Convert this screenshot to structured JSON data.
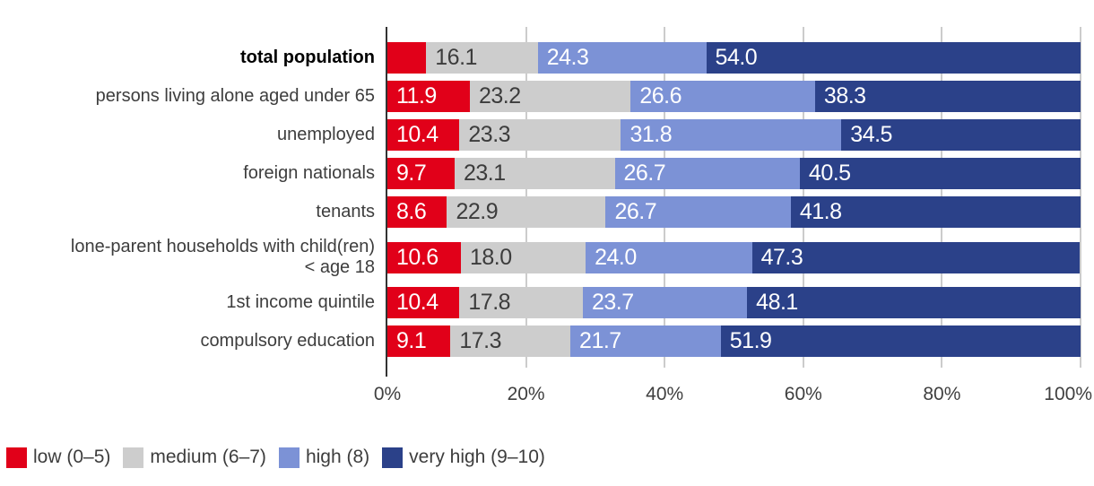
{
  "chart_data": {
    "type": "bar",
    "orientation": "horizontal",
    "stacked": true,
    "title": "",
    "unit": "%",
    "x_ticks": [
      "0%",
      "20%",
      "40%",
      "60%",
      "80%",
      "100%"
    ],
    "x_range": [
      0,
      100
    ],
    "gridlines_at": [
      20,
      40,
      60,
      80,
      100
    ],
    "grid": "vertical",
    "legend_position": "bottom-left",
    "series": [
      {
        "name": "low (0–5)",
        "key": "low",
        "color": "#e10019",
        "label_color": "#ffffff"
      },
      {
        "name": "medium (6–7)",
        "key": "medium",
        "color": "#cdcdcd",
        "label_color": "#3c3c3c"
      },
      {
        "name": "high (8)",
        "key": "high",
        "color": "#7c92d6",
        "label_color": "#ffffff"
      },
      {
        "name": "very high (9–10)",
        "key": "very-high",
        "color": "#2b4189",
        "label_color": "#ffffff"
      }
    ],
    "rows": [
      {
        "category": "total population",
        "bold": true,
        "tall": false,
        "values": [
          5.6,
          16.1,
          24.3,
          54.0
        ],
        "labels": [
          "",
          "16.1",
          "24.3",
          "54.0"
        ]
      },
      {
        "category": "persons living alone aged under 65",
        "bold": false,
        "tall": false,
        "values": [
          11.9,
          23.2,
          26.6,
          38.3
        ],
        "labels": [
          "11.9",
          "23.2",
          "26.6",
          "38.3"
        ]
      },
      {
        "category": "unemployed",
        "bold": false,
        "tall": false,
        "values": [
          10.4,
          23.3,
          31.8,
          34.5
        ],
        "labels": [
          "10.4",
          "23.3",
          "31.8",
          "34.5"
        ]
      },
      {
        "category": "foreign nationals",
        "bold": false,
        "tall": false,
        "values": [
          9.7,
          23.1,
          26.7,
          40.5
        ],
        "labels": [
          "9.7",
          "23.1",
          "26.7",
          "40.5"
        ]
      },
      {
        "category": "tenants",
        "bold": false,
        "tall": false,
        "values": [
          8.6,
          22.9,
          26.7,
          41.8
        ],
        "labels": [
          "8.6",
          "22.9",
          "26.7",
          "41.8"
        ]
      },
      {
        "category": "lone-parent households with child(ren)\n< age 18",
        "bold": false,
        "tall": true,
        "values": [
          10.6,
          18.0,
          24.0,
          47.3
        ],
        "labels": [
          "10.6",
          "18.0",
          "24.0",
          "47.3"
        ]
      },
      {
        "category": "1st income quintile",
        "bold": false,
        "tall": false,
        "values": [
          10.4,
          17.8,
          23.7,
          48.1
        ],
        "labels": [
          "10.4",
          "17.8",
          "23.7",
          "48.1"
        ]
      },
      {
        "category": "compulsory education",
        "bold": false,
        "tall": false,
        "values": [
          9.1,
          17.3,
          21.7,
          51.9
        ],
        "labels": [
          "9.1",
          "17.3",
          "21.7",
          "51.9"
        ]
      }
    ]
  }
}
